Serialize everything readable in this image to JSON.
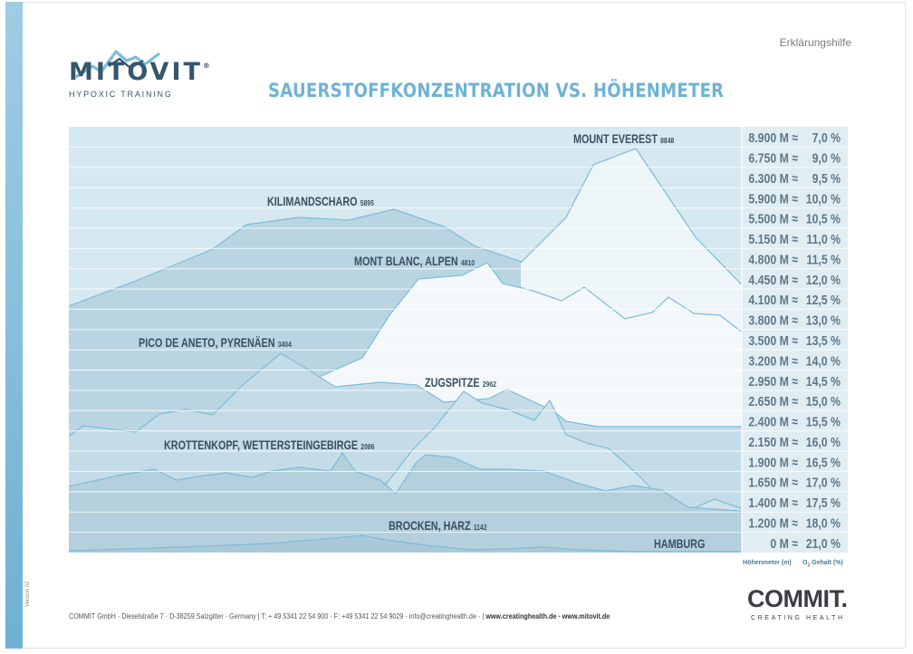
{
  "header": {
    "brand": "MITOVIT",
    "brand_mark": "®",
    "tagline": "HYPOXIC TRAINING",
    "help_label": "Erklärungshilfe",
    "title": "SAUERSTOFFKONZENTRATION VS. HÖHENMETER"
  },
  "side": {
    "version": "Version 02"
  },
  "footer": {
    "address": "COMMIT GmbH · Dieselstraße 7 · D-38259 Salzgitter · Germany | T: + 49 5341 22 54 900 · F: +49 5341 22 54 9029 · info@creatinghealth.de ·  | ",
    "websites": "www.creatinghealth.de · www.mitovit.de",
    "commit_logo": "COMMIT.",
    "commit_sub": "CREATING HEALTH"
  },
  "colors": {
    "accent": "#6db3d6",
    "chart_bg": "#d6e8f0",
    "label_col": "#e0edf3",
    "band_line": "#ffffff",
    "ridge": "#7cbcd9",
    "peak_label": "#3b4f5e",
    "scale_text": "#5f7888"
  },
  "chart_data": {
    "type": "area",
    "subject": "Höhenmeter vs. O2 Gehalt",
    "xlabel": "Höhenmeter (m)",
    "ylabel": "O2 Gehalt (%)",
    "scale": [
      {
        "altitude": "8.900 M",
        "o2": "7,0 %"
      },
      {
        "altitude": "6.750 M",
        "o2": "9,0 %"
      },
      {
        "altitude": "6.300 M",
        "o2": "9,5 %"
      },
      {
        "altitude": "5.900 M",
        "o2": "10,0 %"
      },
      {
        "altitude": "5.500 M",
        "o2": "10,5 %"
      },
      {
        "altitude": "5.150 M",
        "o2": "11,0 %"
      },
      {
        "altitude": "4.800 M",
        "o2": "11,5 %"
      },
      {
        "altitude": "4.450 M",
        "o2": "12,0 %"
      },
      {
        "altitude": "4.100 M",
        "o2": "12,5 %"
      },
      {
        "altitude": "3.800 M",
        "o2": "13,0 %"
      },
      {
        "altitude": "3.500 M",
        "o2": "13,5 %"
      },
      {
        "altitude": "3.200 M",
        "o2": "14,0 %"
      },
      {
        "altitude": "2.950 M",
        "o2": "14,5 %"
      },
      {
        "altitude": "2.650 M",
        "o2": "15,0 %"
      },
      {
        "altitude": "2.400 M",
        "o2": "15,5 %"
      },
      {
        "altitude": "2.150 M",
        "o2": "16,0 %"
      },
      {
        "altitude": "1.900 M",
        "o2": "16,5 %"
      },
      {
        "altitude": "1.650 M",
        "o2": "17,0 %"
      },
      {
        "altitude": "1.400 M",
        "o2": "17,5 %"
      },
      {
        "altitude": "1.200 M",
        "o2": "18,0 %"
      },
      {
        "altitude": "0 M",
        "o2": "21,0 %"
      }
    ],
    "approx": "≈",
    "peaks": [
      {
        "name": "MOUNT EVEREST",
        "height": "8848",
        "height_m": 8848
      },
      {
        "name": "KILIMANDSCHARO",
        "height": "5895",
        "height_m": 5895
      },
      {
        "name": "MONT BLANC, ALPEN",
        "height": "4810",
        "height_m": 4810
      },
      {
        "name": "PICO DE ANETO, PYRENÄEN",
        "height": "3404",
        "height_m": 3404
      },
      {
        "name": "ZUGSPITZE",
        "height": "2962",
        "height_m": 2962
      },
      {
        "name": "KROTTENKOPF, WETTERSTEINGEBIRGE",
        "height": "2086",
        "height_m": 2086
      },
      {
        "name": "BROCKEN, HARZ",
        "height": "1142",
        "height_m": 1142
      },
      {
        "name": "HAMBURG",
        "height": "",
        "height_m": 0
      }
    ],
    "legend": {
      "altitude_caption": "Höhenmeter (m)",
      "o2_caption_pre": "O",
      "o2_caption_sub": "2",
      "o2_caption_post": " Gehalt (%)"
    }
  }
}
